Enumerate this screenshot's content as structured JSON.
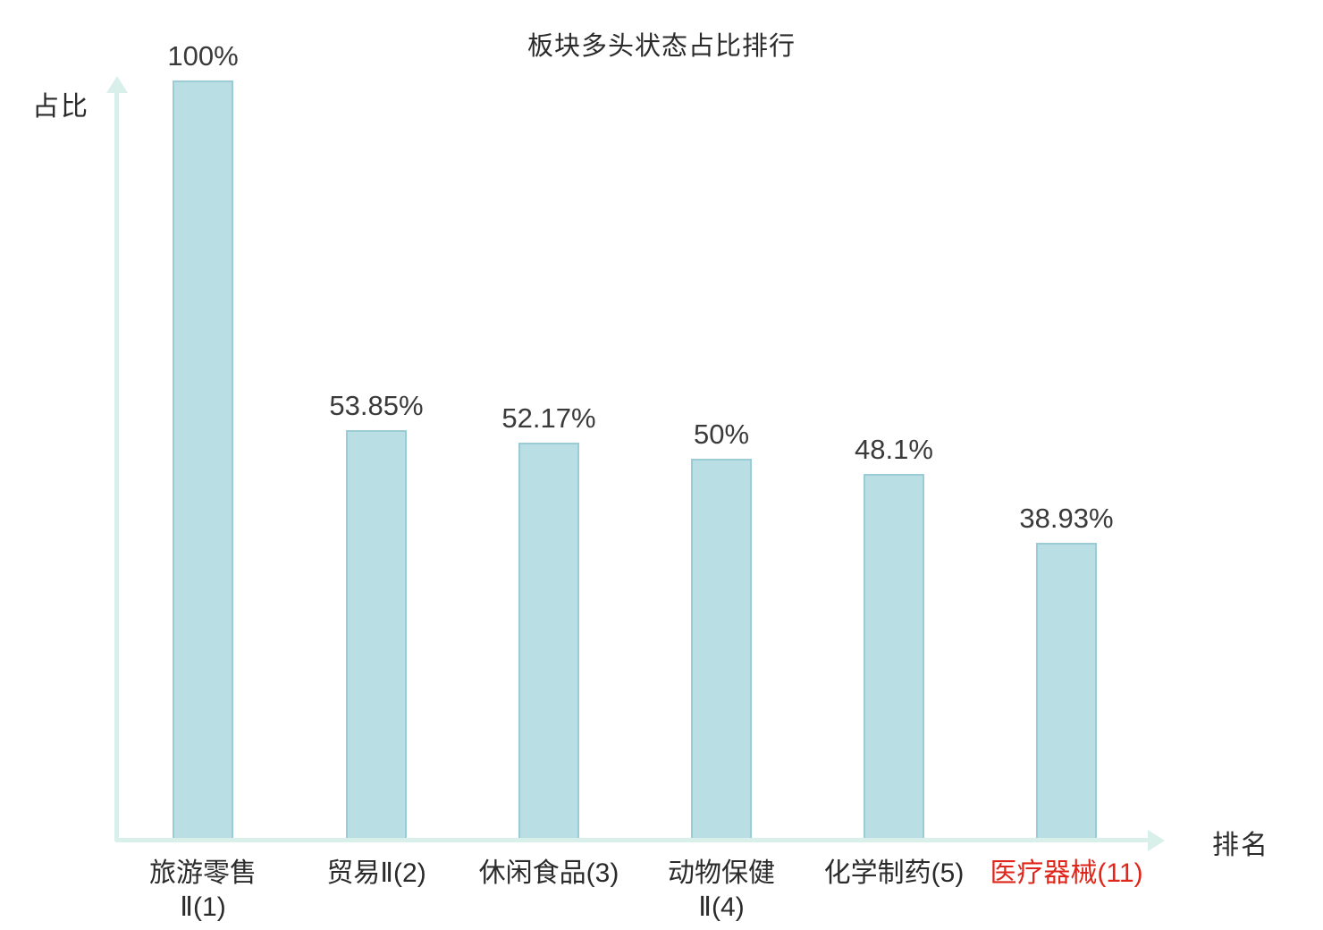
{
  "title": "板块多头状态占比排行",
  "y_axis_label": "占比",
  "x_axis_label": "排名",
  "colors": {
    "bar_fill": "#b9dee3",
    "bar_border": "#9bcbd4",
    "axis": "#d9efe9",
    "text": "#2b2b2b",
    "highlight": "#e0261a"
  },
  "chart_data": {
    "type": "bar",
    "title": "板块多头状态占比排行",
    "xlabel": "排名",
    "ylabel": "占比",
    "ylim": [
      0,
      100
    ],
    "grid": false,
    "legend": "none",
    "categories": [
      "旅游零售Ⅱ(1)",
      "贸易Ⅱ(2)",
      "休闲食品(3)",
      "动物保健Ⅱ(4)",
      "化学制药(5)",
      "医疗器械(11)"
    ],
    "category_label_lines": [
      [
        "旅游零售",
        "Ⅱ(1)"
      ],
      [
        "贸易Ⅱ(2)"
      ],
      [
        "休闲食品(3)"
      ],
      [
        "动物保健",
        "Ⅱ(4)"
      ],
      [
        "化学制药(5)"
      ],
      [
        "医疗器械(11)"
      ]
    ],
    "values": [
      100,
      53.85,
      52.17,
      50,
      48.1,
      38.93
    ],
    "value_labels": [
      "100%",
      "53.85%",
      "52.17%",
      "50%",
      "48.1%",
      "38.93%"
    ],
    "highlight_index": 5
  }
}
